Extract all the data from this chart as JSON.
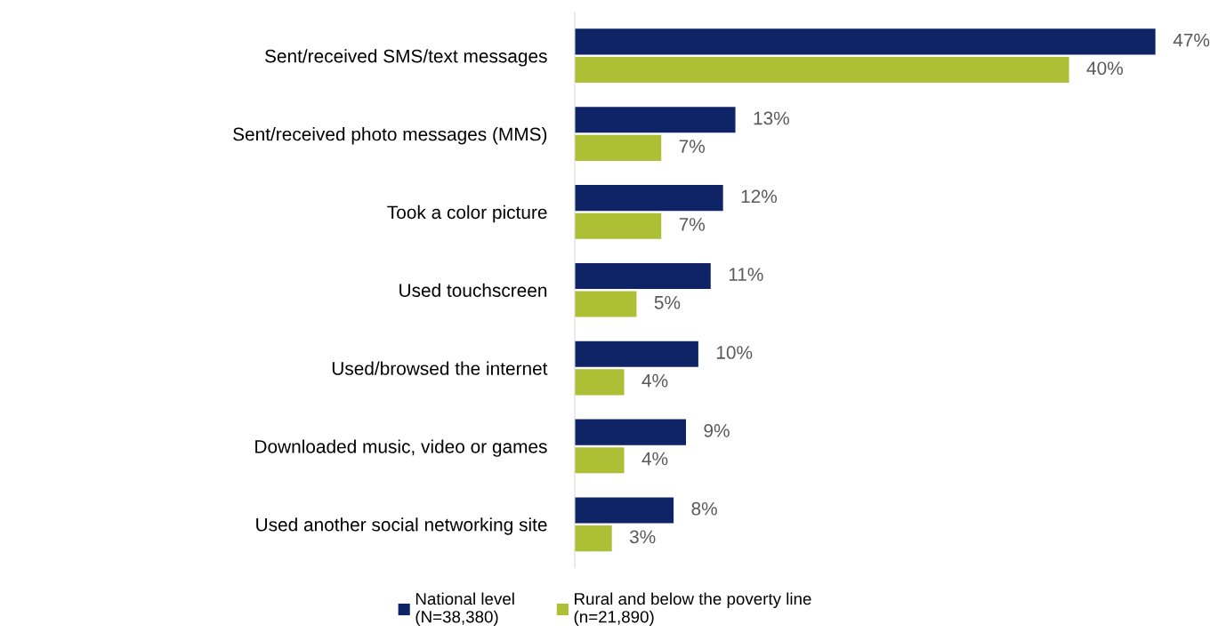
{
  "chart_data": {
    "type": "bar",
    "orientation": "horizontal",
    "categories": [
      "Sent/received SMS/text messages",
      "Sent/received photo messages (MMS)",
      "Took a color picture",
      "Used touchscreen",
      "Used/browsed the internet",
      "Downloaded music, video or games",
      "Used another social networking site"
    ],
    "series": [
      {
        "name": "National level\n(N=38,380)",
        "color": "#0e2466",
        "values": [
          47,
          13,
          12,
          11,
          10,
          9,
          8
        ],
        "value_labels": [
          "47%",
          "13%",
          "12%",
          "11%",
          "10%",
          "9%",
          "8%"
        ]
      },
      {
        "name": "Rural and below the poverty line\n(n=21,890)",
        "color": "#adbf35",
        "values": [
          40,
          7,
          7,
          5,
          4,
          4,
          3
        ],
        "value_labels": [
          "40%",
          "7%",
          "7%",
          "5%",
          "4%",
          "4%",
          "3%"
        ]
      }
    ],
    "tick_labels": "y",
    "legend": "bottom"
  }
}
